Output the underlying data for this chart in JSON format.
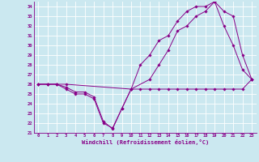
{
  "xlabel": "Windchill (Refroidissement éolien,°C)",
  "background_color": "#cbe8f0",
  "line_color": "#880088",
  "grid_color": "#ffffff",
  "ylim": [
    21,
    34.5
  ],
  "xlim": [
    -0.5,
    23.5
  ],
  "yticks": [
    21,
    22,
    23,
    24,
    25,
    26,
    27,
    28,
    29,
    30,
    31,
    32,
    33,
    34
  ],
  "xticks": [
    0,
    1,
    2,
    3,
    4,
    5,
    6,
    7,
    8,
    9,
    10,
    11,
    12,
    13,
    14,
    15,
    16,
    17,
    18,
    19,
    20,
    21,
    22,
    23
  ],
  "series1_x": [
    0,
    1,
    2,
    3,
    4,
    5,
    6,
    7,
    8,
    9,
    10,
    11,
    12,
    13,
    14,
    15,
    16,
    17,
    18,
    19,
    20,
    21,
    22,
    23
  ],
  "series1_y": [
    26,
    26,
    26,
    25.7,
    25.2,
    25.2,
    24.7,
    22.2,
    21.4,
    23.5,
    25.5,
    25.5,
    25.5,
    25.5,
    25.5,
    25.5,
    25.5,
    25.5,
    25.5,
    25.5,
    25.5,
    25.5,
    25.5,
    26.5
  ],
  "series2_x": [
    0,
    1,
    2,
    3,
    10,
    12,
    13,
    14,
    15,
    16,
    17,
    18,
    19,
    20,
    21,
    22,
    23
  ],
  "series2_y": [
    26,
    26,
    26,
    26,
    25.5,
    26.5,
    28,
    29.5,
    31.5,
    32,
    33,
    33.5,
    34.5,
    32,
    30,
    27.5,
    26.5
  ],
  "series3_x": [
    0,
    1,
    2,
    3,
    4,
    5,
    6,
    7,
    8,
    9,
    10,
    11,
    12,
    13,
    14,
    15,
    16,
    17,
    18,
    19,
    20,
    21,
    22,
    23
  ],
  "series3_y": [
    26,
    26,
    26,
    25.5,
    25.0,
    25.0,
    24.5,
    22.0,
    21.5,
    23.5,
    25.5,
    28,
    29,
    30.5,
    31,
    32.5,
    33.5,
    34,
    34,
    34.5,
    33.5,
    33,
    29,
    26.5
  ]
}
